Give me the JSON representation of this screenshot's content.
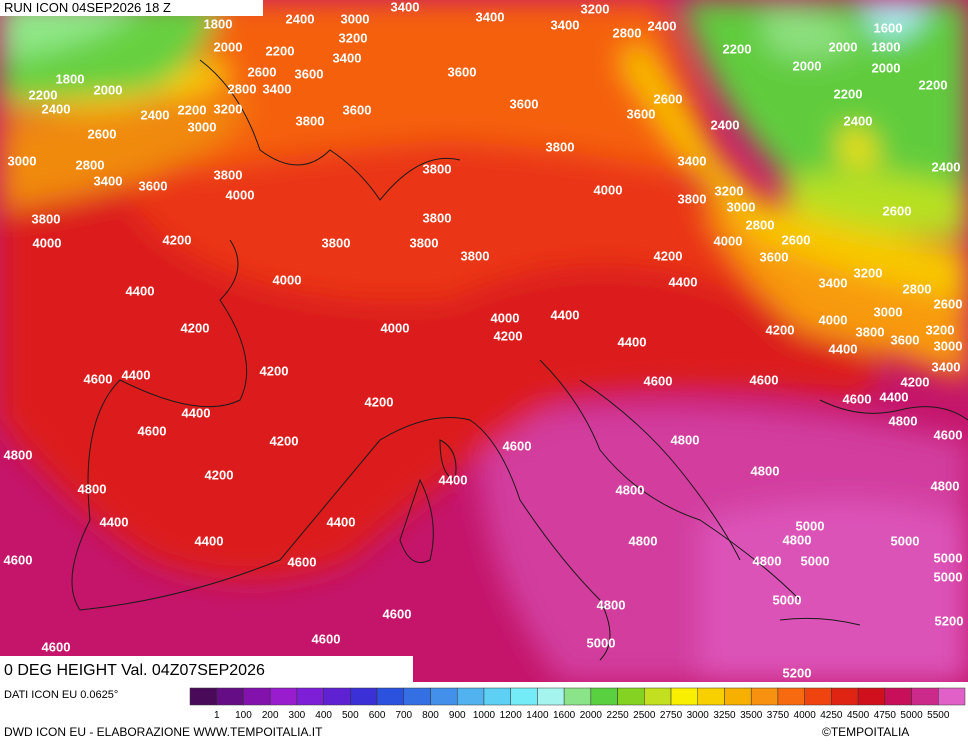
{
  "run_title": "RUN ICON 04SEP2026 18 Z",
  "map_title": "0 DEG HEIGHT Val. 04Z07SEP2026",
  "data_source": "DATI ICON EU 0.0625°",
  "credit": "DWD ICON EU - ELABORAZIONE WWW.TEMPOITALIA.IT",
  "copyright": "©TEMPOITALIA",
  "colorbar": {
    "labels": [
      1,
      100,
      200,
      300,
      400,
      500,
      600,
      700,
      800,
      900,
      1000,
      1200,
      1400,
      1600,
      2000,
      2250,
      2500,
      2750,
      3000,
      3250,
      3500,
      3750,
      4000,
      4250,
      4500,
      4750,
      5000,
      5500
    ],
    "colors": [
      "#4a0a5a",
      "#650d85",
      "#8312ad",
      "#9a1ccf",
      "#7d1fd6",
      "#5e22d2",
      "#3a30d6",
      "#2a52de",
      "#3470e4",
      "#4290ea",
      "#52b2f0",
      "#5ed0f4",
      "#74ecf8",
      "#a6f4ee",
      "#8ce48a",
      "#58d040",
      "#86d222",
      "#c2e020",
      "#f8f000",
      "#f8d000",
      "#f8b000",
      "#f89010",
      "#f86a10",
      "#f04410",
      "#e02414",
      "#d0101c",
      "#c8105a",
      "#cc2a8a",
      "#e060c8"
    ]
  },
  "contour_labels": [
    "2400",
    "3000",
    "3400",
    "3400",
    "3200",
    "1800",
    "2400",
    "1600",
    "3200",
    "2800",
    "3400",
    "2000",
    "2200",
    "3400",
    "2200",
    "2000",
    "1800",
    "2000",
    "2000",
    "1800",
    "2600",
    "3600",
    "3600",
    "2800",
    "3400",
    "2000",
    "2200",
    "2400",
    "2200",
    "2200",
    "2400",
    "2200",
    "3200",
    "3600",
    "3600",
    "3600",
    "2600",
    "3000",
    "3800",
    "2400",
    "2400",
    "2600",
    "3800",
    "2800",
    "3000",
    "3400",
    "2400",
    "3800",
    "3800",
    "3400",
    "3600",
    "4000",
    "4000",
    "3200",
    "3800",
    "3000",
    "2600",
    "3800",
    "3800",
    "2800",
    "4000",
    "4200",
    "3800",
    "3800",
    "4000",
    "2600",
    "3800",
    "4200",
    "3600",
    "3200",
    "4000",
    "4400",
    "3400",
    "2800",
    "4400",
    "3000",
    "2600",
    "4000",
    "4400",
    "4000",
    "4200",
    "4000",
    "4200",
    "4200",
    "3800",
    "3200",
    "3600",
    "3000",
    "4400",
    "4400",
    "4200",
    "4400",
    "3400",
    "4600",
    "4600",
    "4600",
    "4200",
    "4200",
    "4600",
    "4400",
    "4400",
    "4800",
    "4600",
    "4200",
    "4600",
    "4800",
    "4600",
    "4800",
    "4200",
    "4800",
    "4400",
    "4800",
    "4800",
    "4800",
    "4400",
    "4400",
    "5000",
    "4800",
    "4400",
    "4800",
    "5000",
    "4600",
    "4600",
    "4800",
    "5000",
    "5000",
    "5000",
    "5000",
    "4800",
    "4600",
    "5200",
    "4600",
    "5000",
    "4600",
    "5200"
  ]
}
